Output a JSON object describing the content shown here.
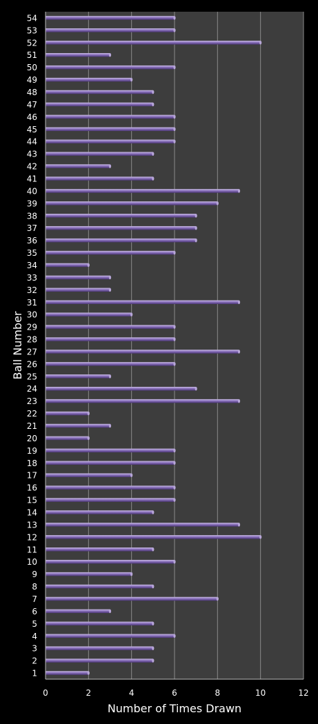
{
  "chart_data": {
    "type": "bar",
    "orientation": "horizontal",
    "title": "",
    "xlabel": "Number of Times Drawn",
    "ylabel": "Ball Number",
    "xlim": [
      0,
      12
    ],
    "x_ticks": [
      "0",
      "2",
      "4",
      "6",
      "8",
      "10",
      "12"
    ],
    "grid": true,
    "legend": "none",
    "categories": [
      "1",
      "2",
      "3",
      "4",
      "5",
      "6",
      "7",
      "8",
      "9",
      "10",
      "11",
      "12",
      "13",
      "14",
      "15",
      "16",
      "17",
      "18",
      "19",
      "20",
      "21",
      "22",
      "23",
      "24",
      "25",
      "26",
      "27",
      "28",
      "29",
      "30",
      "31",
      "32",
      "33",
      "34",
      "35",
      "36",
      "37",
      "38",
      "39",
      "40",
      "41",
      "42",
      "43",
      "44",
      "45",
      "46",
      "47",
      "48",
      "49",
      "50",
      "51",
      "52",
      "53",
      "54"
    ],
    "values": [
      2,
      5,
      5,
      6,
      5,
      3,
      8,
      5,
      4,
      6,
      5,
      10,
      9,
      5,
      6,
      6,
      4,
      6,
      6,
      2,
      3,
      2,
      9,
      7,
      3,
      6,
      9,
      6,
      6,
      4,
      9,
      3,
      3,
      2,
      6,
      7,
      7,
      7,
      8,
      9,
      5,
      3,
      5,
      6,
      6,
      6,
      5,
      5,
      4,
      6,
      3,
      10,
      6,
      6
    ],
    "colors": {
      "background": "#000000",
      "plot_area": "#3d3d3d",
      "gridline": "#8a8a8a",
      "bar_light": "#b7a6d8",
      "bar_mid": "#7d63b0",
      "bar_dark": "#4b3675",
      "text": "#ffffff"
    }
  }
}
